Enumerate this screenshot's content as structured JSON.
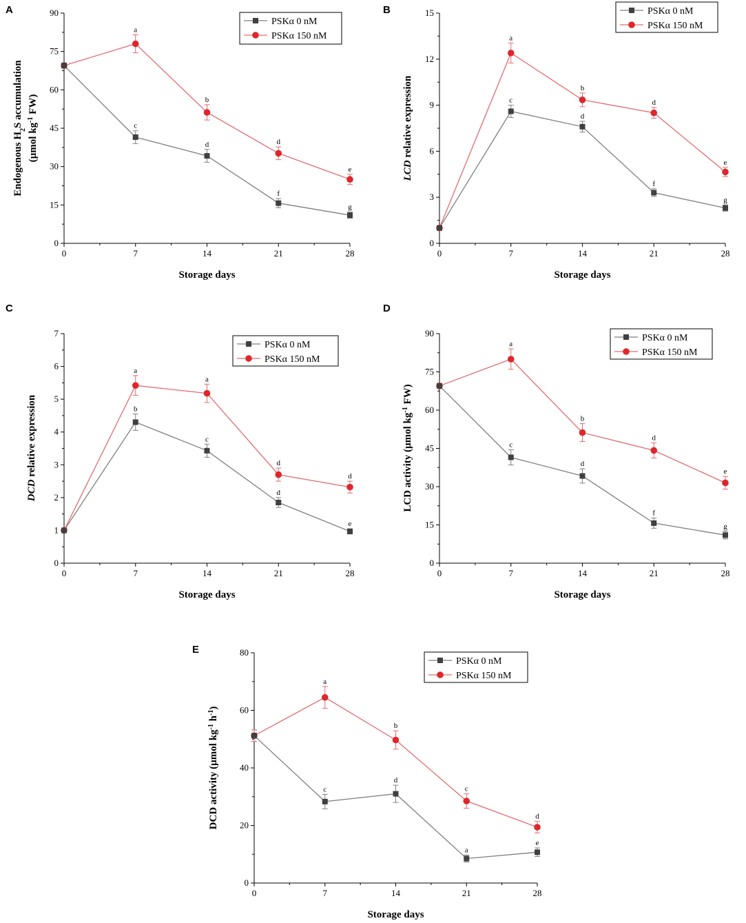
{
  "colors": {
    "control": "#404040",
    "treated": "#e0262b",
    "control_line": "#7f7f7f",
    "treated_line": "#e56a6e"
  },
  "chart_data": [
    {
      "panel": "A",
      "type": "line",
      "title": "",
      "xlabel": "Storage days",
      "ylabel": {
        "pre": "Endogenous H",
        "sub": "2",
        "post": "S accumulation",
        "line2_pre": "(µmol kg",
        "line2_sup": "-1",
        "line2_post": " FW)"
      },
      "x": [
        0,
        7,
        14,
        21,
        28
      ],
      "xticks": [
        "0",
        "7",
        "14",
        "21",
        "28"
      ],
      "ylim": [
        0,
        90
      ],
      "yticks": [
        "0",
        "15",
        "30",
        "45",
        "60",
        "75",
        "90"
      ],
      "legend": {
        "position": "top-right",
        "entries": [
          "PSKα 0 nM",
          "PSKα 150 nM"
        ]
      },
      "series": [
        {
          "name": "PSKα 0 nM",
          "values": [
            69.5,
            41.5,
            34.2,
            15.7,
            11.0
          ],
          "errors": [
            1.0,
            2.5,
            2.5,
            1.8,
            1.2
          ],
          "letters": [
            "",
            "c",
            "d",
            "f",
            "g"
          ]
        },
        {
          "name": "PSKα 150 nM",
          "values": [
            69.5,
            78.0,
            51.2,
            35.2,
            25.0
          ],
          "errors": [
            1.0,
            3.5,
            3.0,
            2.5,
            2.0
          ],
          "letters": [
            "",
            "a",
            "b",
            "d",
            "e"
          ]
        }
      ]
    },
    {
      "panel": "B",
      "type": "line",
      "title": "",
      "xlabel": "Storage days",
      "ylabel": {
        "italic": "LCD",
        "rest": " relative expression"
      },
      "x": [
        0,
        7,
        14,
        21,
        28
      ],
      "xticks": [
        "0",
        "7",
        "14",
        "21",
        "28"
      ],
      "ylim": [
        0,
        15
      ],
      "yticks": [
        "0",
        "3",
        "6",
        "9",
        "12",
        "15"
      ],
      "legend": {
        "position": "top-right",
        "entries": [
          "PSKα 0 nM",
          "PSKα 150 nM"
        ]
      },
      "series": [
        {
          "name": "PSKα 0 nM",
          "values": [
            1.0,
            8.6,
            7.6,
            3.3,
            2.3
          ],
          "errors": [
            0.1,
            0.4,
            0.35,
            0.25,
            0.2
          ],
          "letters": [
            "",
            "c",
            "d",
            "f",
            "g"
          ]
        },
        {
          "name": "PSKα 150 nM",
          "values": [
            1.0,
            12.4,
            9.35,
            8.5,
            4.65
          ],
          "errors": [
            0.1,
            0.65,
            0.45,
            0.35,
            0.3
          ],
          "letters": [
            "",
            "a",
            "b",
            "d",
            "e"
          ]
        }
      ]
    },
    {
      "panel": "C",
      "type": "line",
      "title": "",
      "xlabel": "Storage days",
      "ylabel": {
        "italic": "DCD",
        "rest": " relative expression"
      },
      "x": [
        0,
        7,
        14,
        21,
        28
      ],
      "xticks": [
        "0",
        "7",
        "14",
        "21",
        "28"
      ],
      "ylim": [
        0,
        7
      ],
      "yticks": [
        "0",
        "1",
        "2",
        "3",
        "4",
        "5",
        "6",
        "7"
      ],
      "legend": {
        "position": "top-right",
        "entries": [
          "PSKα 0 nM",
          "PSKα 150 nM"
        ]
      },
      "series": [
        {
          "name": "PSKα 0 nM",
          "values": [
            1.0,
            4.3,
            3.43,
            1.85,
            0.97
          ],
          "errors": [
            0.05,
            0.25,
            0.2,
            0.15,
            0.08
          ],
          "letters": [
            "",
            "b",
            "c",
            "d",
            "e"
          ]
        },
        {
          "name": "PSKα 150 nM",
          "values": [
            1.0,
            5.42,
            5.18,
            2.7,
            2.32
          ],
          "errors": [
            0.05,
            0.3,
            0.28,
            0.2,
            0.18
          ],
          "letters": [
            "",
            "a",
            "a",
            "d",
            "d"
          ]
        }
      ]
    },
    {
      "panel": "D",
      "type": "line",
      "title": "",
      "xlabel": "Storage days",
      "ylabel": {
        "pre": "LCD activity (µmol kg",
        "sup": "-1",
        "post": " FW)"
      },
      "x": [
        0,
        7,
        14,
        21,
        28
      ],
      "xticks": [
        "0",
        "7",
        "14",
        "21",
        "28"
      ],
      "ylim": [
        0,
        90
      ],
      "yticks": [
        "0",
        "15",
        "30",
        "45",
        "60",
        "75",
        "90"
      ],
      "legend": {
        "position": "top-right",
        "entries": [
          "PSKα 0 nM",
          "PSKα 150 nM"
        ]
      },
      "series": [
        {
          "name": "PSKα 0 nM",
          "values": [
            69.5,
            41.5,
            34.2,
            15.7,
            11.0
          ],
          "errors": [
            1.0,
            3.0,
            2.8,
            2.0,
            1.5
          ],
          "letters": [
            "",
            "c",
            "d",
            "f",
            "g"
          ]
        },
        {
          "name": "PSKα 150 nM",
          "values": [
            69.5,
            80.0,
            51.2,
            44.2,
            31.5
          ],
          "errors": [
            1.0,
            4.0,
            3.5,
            3.0,
            2.5
          ],
          "letters": [
            "",
            "a",
            "b",
            "d",
            "e"
          ]
        }
      ]
    },
    {
      "panel": "E",
      "type": "line",
      "title": "",
      "xlabel": "Storage days",
      "ylabel": {
        "pre": "DCD activity (µmol kg",
        "sup1": "-1",
        "mid": " h",
        "sup2": "-1",
        "post": ")"
      },
      "x": [
        0,
        7,
        14,
        21,
        28
      ],
      "xticks": [
        "0",
        "7",
        "14",
        "21",
        "28"
      ],
      "ylim": [
        0,
        80
      ],
      "yticks": [
        "0",
        "20",
        "40",
        "60",
        "80"
      ],
      "legend": {
        "position": "top-right",
        "entries": [
          "PSKα 0 nM",
          "PSKα 150 nM"
        ]
      },
      "series": [
        {
          "name": "PSKα 0 nM",
          "values": [
            51.2,
            28.3,
            31.0,
            8.5,
            10.7
          ],
          "errors": [
            2.0,
            2.5,
            3.0,
            1.2,
            1.5
          ],
          "letters": [
            "",
            "c",
            "d",
            "a",
            "e"
          ]
        },
        {
          "name": "PSKα 150 nM",
          "values": [
            51.2,
            64.5,
            49.7,
            28.5,
            19.4
          ],
          "errors": [
            2.0,
            3.8,
            3.2,
            2.5,
            2.0
          ],
          "letters": [
            "",
            "a",
            "b",
            "c",
            "d"
          ]
        }
      ]
    }
  ]
}
